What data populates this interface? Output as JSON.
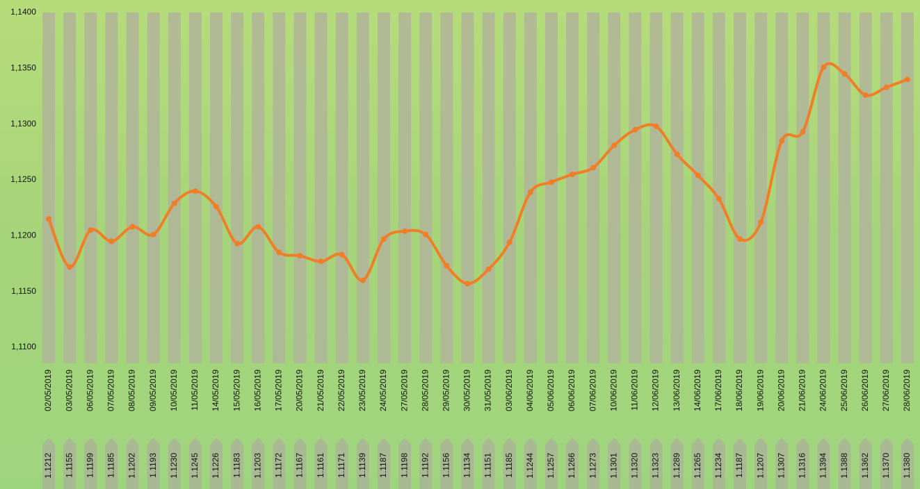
{
  "chart_data": {
    "type": "line",
    "categories": [
      "02/05/2019",
      "03/05/2019",
      "06/05/2019",
      "07/05/2019",
      "08/05/2019",
      "09/05/2019",
      "10/05/2019",
      "11/05/2019",
      "14/05/2019",
      "15/05/2019",
      "16/05/2019",
      "17/05/2019",
      "20/05/2019",
      "21/05/2019",
      "22/05/2019",
      "23/05/2019",
      "24/05/2019",
      "27/05/2019",
      "28/05/2019",
      "29/05/2019",
      "30/05/2019",
      "31/05/2019",
      "03/06/2019",
      "04/06/2019",
      "05/06/2019",
      "06/06/2019",
      "07/06/2019",
      "10/06/2019",
      "11/06/2019",
      "12/06/2019",
      "13/06/2019",
      "14/06/2019",
      "17/06/2019",
      "18/06/2019",
      "19/06/2019",
      "20/06/2019",
      "21/06/2019",
      "24/06/2019",
      "25/06/2019",
      "26/06/2019",
      "27/06/2019",
      "28/06/2019"
    ],
    "price_labels": [
      "1.1212",
      "1.1155",
      "1.1199",
      "1.1185",
      "1.1202",
      "1.1193",
      "1.1230",
      "1.1245",
      "1.1226",
      "1.1183",
      "1.1203",
      "1.1172",
      "1.1167",
      "1.1161",
      "1.1171",
      "1.1139",
      "1.1187",
      "1.1198",
      "1.1192",
      "1.1156",
      "1.1134",
      "1.1151",
      "1.1185",
      "1.1244",
      "1.1257",
      "1.1266",
      "1.1273",
      "1.1301",
      "1.1320",
      "1.1323",
      "1.1289",
      "1.1265",
      "1.1234",
      "1.1187",
      "1.1207",
      "1.1307",
      "1.1316",
      "1.1394",
      "1.1388",
      "1.1362",
      "1.1370",
      "1.1380"
    ],
    "values": [
      1.1215,
      1.1172,
      1.1205,
      1.1195,
      1.1208,
      1.1201,
      1.1229,
      1.124,
      1.1226,
      1.1193,
      1.1208,
      1.1185,
      1.1182,
      1.1177,
      1.1183,
      1.116,
      1.1197,
      1.1204,
      1.1201,
      1.1173,
      1.1157,
      1.117,
      1.1194,
      1.1239,
      1.1248,
      1.1255,
      1.1261,
      1.1281,
      1.1295,
      1.1298,
      1.1273,
      1.1254,
      1.1233,
      1.1197,
      1.1212,
      1.1285,
      1.1293,
      1.1351,
      1.1345,
      1.1326,
      1.1333,
      1.134
    ],
    "color": "#f07e26",
    "ylim": [
      1.11,
      1.14
    ],
    "yticks": [
      {
        "value": 1.11,
        "label": "1,1100"
      },
      {
        "value": 1.115,
        "label": "1,1150"
      },
      {
        "value": 1.12,
        "label": "1,1200"
      },
      {
        "value": 1.125,
        "label": "1,1250"
      },
      {
        "value": 1.13,
        "label": "1,1300"
      },
      {
        "value": 1.135,
        "label": "1,1350"
      },
      {
        "value": 1.14,
        "label": "1,1400"
      }
    ]
  }
}
